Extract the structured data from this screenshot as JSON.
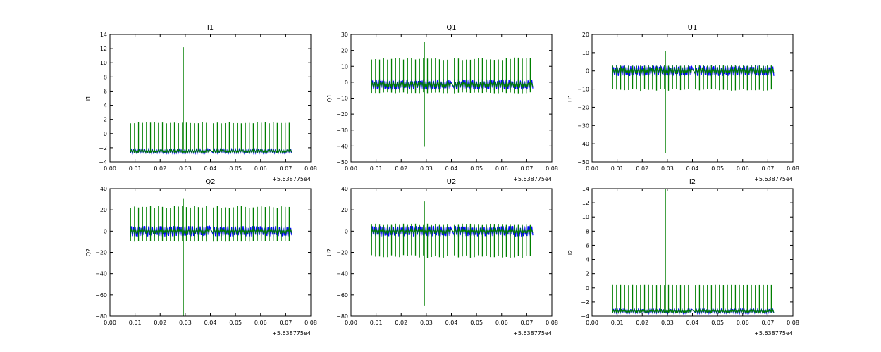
{
  "figure": {
    "background": "#ffffff"
  },
  "chart_data": [
    {
      "type": "line",
      "title": "I1",
      "ylabel": "I1",
      "xlabel": "",
      "xlim": [
        0.0,
        0.08
      ],
      "ylim": [
        -4,
        14
      ],
      "xticks": [
        "0.00",
        "0.01",
        "0.02",
        "0.03",
        "0.04",
        "0.05",
        "0.06",
        "0.07",
        "0.08"
      ],
      "yticks": [
        "−4",
        "−2",
        "0",
        "2",
        "4",
        "6",
        "8",
        "10",
        "12",
        "14"
      ],
      "x_offset": "+5.638775e4",
      "series": [
        {
          "name": "blue",
          "color": "#0000ff",
          "base": -2.5,
          "base_jitter": 0.3,
          "spike_up": 0,
          "spike_down": 0
        },
        {
          "name": "green",
          "color": "#007f00",
          "base": -2.5,
          "base_jitter": 0.2,
          "spike_up": 1.6,
          "spike_down": -2.7,
          "outlier_y": [
            12.2,
            -2.3
          ]
        }
      ]
    },
    {
      "type": "line",
      "title": "Q1",
      "ylabel": "Q1",
      "xlabel": "",
      "xlim": [
        0.0,
        0.08
      ],
      "ylim": [
        -50,
        30
      ],
      "xticks": [
        "0.00",
        "0.01",
        "0.02",
        "0.03",
        "0.04",
        "0.05",
        "0.06",
        "0.07",
        "0.08"
      ],
      "yticks": [
        "−50",
        "−40",
        "−30",
        "−20",
        "−10",
        "0",
        "10",
        "20",
        "30"
      ],
      "x_offset": "+5.638775e4",
      "series": [
        {
          "name": "blue",
          "color": "#0000ff",
          "base": -1.5,
          "base_jitter": 3.0,
          "spike_up": 2,
          "spike_down": -5
        },
        {
          "name": "green",
          "color": "#007f00",
          "base": -1.5,
          "base_jitter": 1.5,
          "spike_up": 15.5,
          "spike_down": -7,
          "outlier_y": [
            25.5,
            -40.5
          ]
        }
      ]
    },
    {
      "type": "line",
      "title": "U1",
      "ylabel": "U1",
      "xlabel": "",
      "xlim": [
        0.0,
        0.08
      ],
      "ylim": [
        -50,
        20
      ],
      "xticks": [
        "0.00",
        "0.01",
        "0.02",
        "0.03",
        "0.04",
        "0.05",
        "0.06",
        "0.07",
        "0.08"
      ],
      "yticks": [
        "−50",
        "−40",
        "−30",
        "−20",
        "−10",
        "0",
        "10",
        "20"
      ],
      "x_offset": "+5.638775e4",
      "series": [
        {
          "name": "blue",
          "color": "#0000ff",
          "base": 0,
          "base_jitter": 2.8,
          "spike_up": 3,
          "spike_down": -3
        },
        {
          "name": "green",
          "color": "#007f00",
          "base": 0,
          "base_jitter": 1.5,
          "spike_up": 3,
          "spike_down": -11,
          "outlier_y": [
            11,
            -45
          ]
        }
      ]
    },
    {
      "type": "line",
      "title": "Q2",
      "ylabel": "Q2",
      "xlabel": "",
      "xlim": [
        0.0,
        0.08
      ],
      "ylim": [
        -80,
        40
      ],
      "xticks": [
        "0.00",
        "0.01",
        "0.02",
        "0.03",
        "0.04",
        "0.05",
        "0.06",
        "0.07",
        "0.08"
      ],
      "yticks": [
        "−80",
        "−60",
        "−40",
        "−20",
        "0",
        "20",
        "40"
      ],
      "x_offset": "+5.638775e4",
      "series": [
        {
          "name": "blue",
          "color": "#0000ff",
          "base": 0,
          "base_jitter": 5,
          "spike_up": 5,
          "spike_down": -5
        },
        {
          "name": "green",
          "color": "#007f00",
          "base": 0,
          "base_jitter": 2,
          "spike_up": 24,
          "spike_down": -10,
          "outlier_y": [
            31,
            -80
          ]
        }
      ]
    },
    {
      "type": "line",
      "title": "U2",
      "ylabel": "U2",
      "xlabel": "",
      "xlim": [
        0.0,
        0.08
      ],
      "ylim": [
        -80,
        40
      ],
      "xticks": [
        "0.00",
        "0.01",
        "0.02",
        "0.03",
        "0.04",
        "0.05",
        "0.06",
        "0.07",
        "0.08"
      ],
      "yticks": [
        "−80",
        "−60",
        "−40",
        "−20",
        "0",
        "20",
        "40"
      ],
      "x_offset": "+5.638775e4",
      "series": [
        {
          "name": "blue",
          "color": "#0000ff",
          "base": 0,
          "base_jitter": 5,
          "spike_up": 5,
          "spike_down": -5
        },
        {
          "name": "green",
          "color": "#007f00",
          "base": 0,
          "base_jitter": 2,
          "spike_up": 7,
          "spike_down": -25,
          "outlier_y": [
            28,
            -70
          ]
        }
      ]
    },
    {
      "type": "line",
      "title": "I2",
      "ylabel": "I2",
      "xlabel": "",
      "xlim": [
        0.0,
        0.08
      ],
      "ylim": [
        -4,
        14
      ],
      "xticks": [
        "0.00",
        "0.01",
        "0.02",
        "0.03",
        "0.04",
        "0.05",
        "0.06",
        "0.07",
        "0.08"
      ],
      "yticks": [
        "−4",
        "−2",
        "0",
        "2",
        "4",
        "6",
        "8",
        "10",
        "12",
        "14"
      ],
      "x_offset": "+5.638775e4",
      "series": [
        {
          "name": "blue",
          "color": "#0000ff",
          "base": -3.3,
          "base_jitter": 0.3,
          "spike_up": 0,
          "spike_down": 0
        },
        {
          "name": "green",
          "color": "#007f00",
          "base": -3.3,
          "base_jitter": 0.2,
          "spike_up": 0.4,
          "spike_down": -3.6,
          "outlier_y": [
            14,
            -3.2
          ]
        }
      ]
    }
  ]
}
